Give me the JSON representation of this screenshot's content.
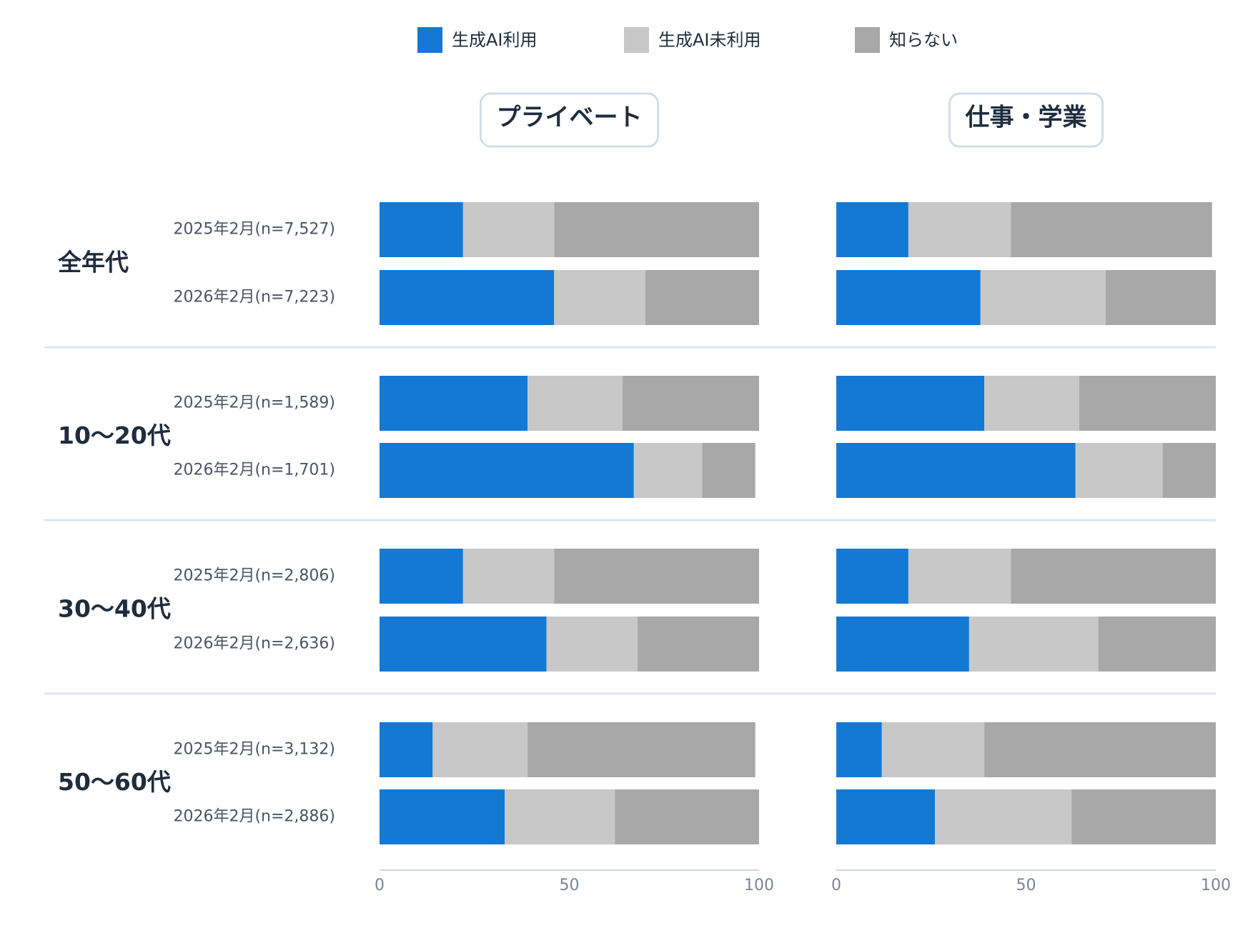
{
  "chart_data": [
    {
      "type": "bar",
      "title": "プライベート",
      "groups": [
        "全年代",
        "10〜20代",
        "30〜40代",
        "50〜60代"
      ],
      "categories": [
        "2025年2月(n=7,527)",
        "2026年2月(n=7,223)",
        "2025年2月(n=1,589)",
        "2026年2月(n=1,701)",
        "2025年2月(n=2,806)",
        "2026年2月(n=2,636)",
        "2025年2月(n=3,132)",
        "2026年2月(n=2,886)"
      ],
      "series": [
        {
          "name": "生成AI利用",
          "color": "#1479d4",
          "values": [
            22,
            46,
            39,
            67,
            22,
            44,
            14,
            33
          ]
        },
        {
          "name": "生成AI未利用",
          "color": "#c8c8c8",
          "values": [
            24,
            24,
            25,
            18,
            24,
            24,
            25,
            29
          ]
        },
        {
          "name": "知らない",
          "color": "#a8a8a8",
          "values": [
            54,
            30,
            36,
            14,
            54,
            32,
            60,
            38
          ]
        }
      ],
      "xlim": [
        0,
        100
      ],
      "xticks": [
        0,
        50,
        100
      ]
    },
    {
      "type": "bar",
      "title": "仕事・学業",
      "series": [
        {
          "values": [
            19,
            38,
            39,
            63,
            19,
            35,
            12,
            26
          ]
        },
        {
          "values": [
            27,
            33,
            25,
            23,
            27,
            34,
            27,
            36
          ]
        },
        {
          "values": [
            53,
            29,
            36,
            14,
            54,
            31,
            61,
            38
          ]
        }
      ],
      "xlim": [
        0,
        100
      ],
      "xticks": [
        0,
        50,
        100
      ]
    }
  ]
}
